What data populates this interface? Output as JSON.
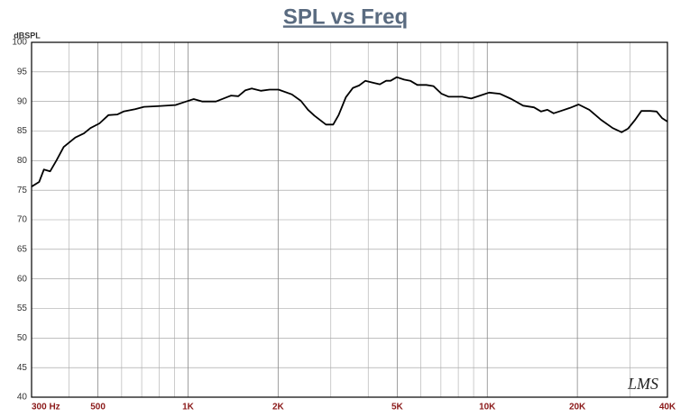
{
  "chart_data": {
    "type": "line",
    "title": "SPL vs Freq",
    "y_label": "dBSPL",
    "watermark": "LMS",
    "log_x": true,
    "grid": true,
    "x": [
      300,
      318,
      330,
      346,
      363,
      384,
      420,
      449,
      472,
      506,
      542,
      581,
      609,
      665,
      713,
      791,
      908,
      973,
      1045,
      1117,
      1239,
      1393,
      1472,
      1555,
      1632,
      1750,
      1873,
      2006,
      2224,
      2383,
      2518,
      2644,
      2891,
      3055,
      3184,
      3366,
      3557,
      3732,
      3915,
      4140,
      4375,
      4592,
      4751,
      4985,
      5270,
      5531,
      5838,
      6255,
      6610,
      7030,
      7431,
      8244,
      8833,
      9464,
      10140,
      11010,
      12050,
      13180,
      14320,
      15130,
      15880,
      16660,
      17610,
      18850,
      20190,
      21930,
      23990,
      26250,
      28120,
      29510,
      31190,
      32730,
      35070,
      36810,
      38370,
      40000
    ],
    "series": [
      {
        "name": "SPL",
        "color": "#000000",
        "values": [
          75.6,
          76.4,
          78.5,
          78.2,
          80,
          82.3,
          83.9,
          84.6,
          85.5,
          86.3,
          87.7,
          87.8,
          88.3,
          88.7,
          89.1,
          89.2,
          89.4,
          89.9,
          90.4,
          90,
          90,
          91,
          90.9,
          91.9,
          92.2,
          91.8,
          92,
          92,
          91.2,
          90.1,
          88.6,
          87.6,
          86.1,
          86.1,
          87.7,
          90.7,
          92.3,
          92.7,
          93.5,
          93.2,
          92.9,
          93.5,
          93.5,
          94.1,
          93.7,
          93.5,
          92.8,
          92.8,
          92.6,
          91.3,
          90.8,
          90.8,
          90.5,
          91,
          91.5,
          91.3,
          90.4,
          89.3,
          89,
          88.3,
          88.6,
          88,
          88.4,
          88.9,
          89.5,
          88.6,
          86.9,
          85.5,
          84.8,
          85.4,
          86.9,
          88.4,
          88.4,
          88.3,
          87.2,
          86.6
        ]
      }
    ],
    "xlim": [
      300,
      40000
    ],
    "xticks": [
      {
        "value": 300,
        "label": "300 Hz"
      },
      500,
      {
        "value": 1000,
        "label": "1K"
      },
      {
        "value": 2000,
        "label": "2K"
      },
      {
        "value": 5000,
        "label": "5K"
      },
      {
        "value": 10000,
        "label": "10K"
      },
      {
        "value": 20000,
        "label": "20K"
      },
      {
        "value": 40000,
        "label": "40K"
      }
    ],
    "x_minor_ticks": [
      400,
      600,
      700,
      800,
      900,
      3000,
      4000,
      6000,
      7000,
      8000,
      9000,
      30000
    ],
    "ylim": [
      40,
      100
    ],
    "yticks": [
      40,
      45,
      50,
      55,
      60,
      65,
      70,
      75,
      80,
      85,
      90,
      95,
      100
    ]
  }
}
